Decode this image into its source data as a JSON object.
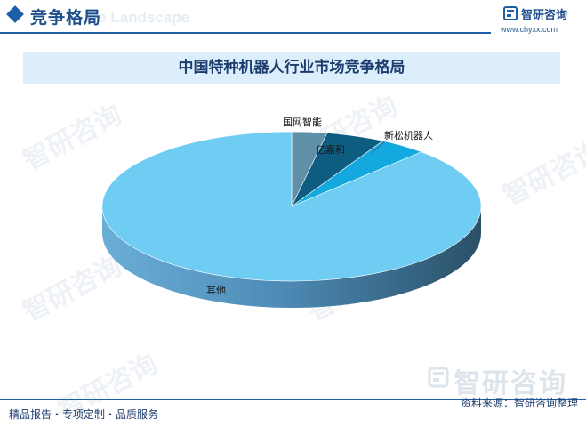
{
  "header": {
    "title": "竞争格局",
    "watermark_text": "ive Landscape",
    "brand_name": "智研咨询",
    "brand_url": "www.chyxx.com"
  },
  "watermarks": [
    "智研咨询",
    "智研咨询",
    "智研咨询",
    "智研咨询",
    "智研咨询",
    "智研咨询"
  ],
  "bottom_watermark": "智研咨询",
  "footer": {
    "left": "精品报告・专项定制・品质服务",
    "right": "资料来源：智研咨询整理"
  },
  "colors": {
    "accent": "#1d5fa6",
    "slice_other": "#6fcdf3",
    "slice_guowang": "#5f8fa9",
    "slice_yijiahe": "#0e5c80",
    "slice_xinsong": "#13a9df"
  },
  "chart_data": {
    "type": "pie",
    "title": "中国特种机器人行业市场竞争格局",
    "style": "3d",
    "legend": "none",
    "slices": [
      {
        "label": "国网智能",
        "value": 3,
        "color": "#5f8fa9"
      },
      {
        "label": "亿嘉和",
        "value": 5,
        "color": "#0e5c80"
      },
      {
        "label": "新松机器人",
        "value": 4,
        "color": "#13a9df"
      },
      {
        "label": "其他",
        "value": 88,
        "color": "#6fcdf3"
      }
    ]
  }
}
